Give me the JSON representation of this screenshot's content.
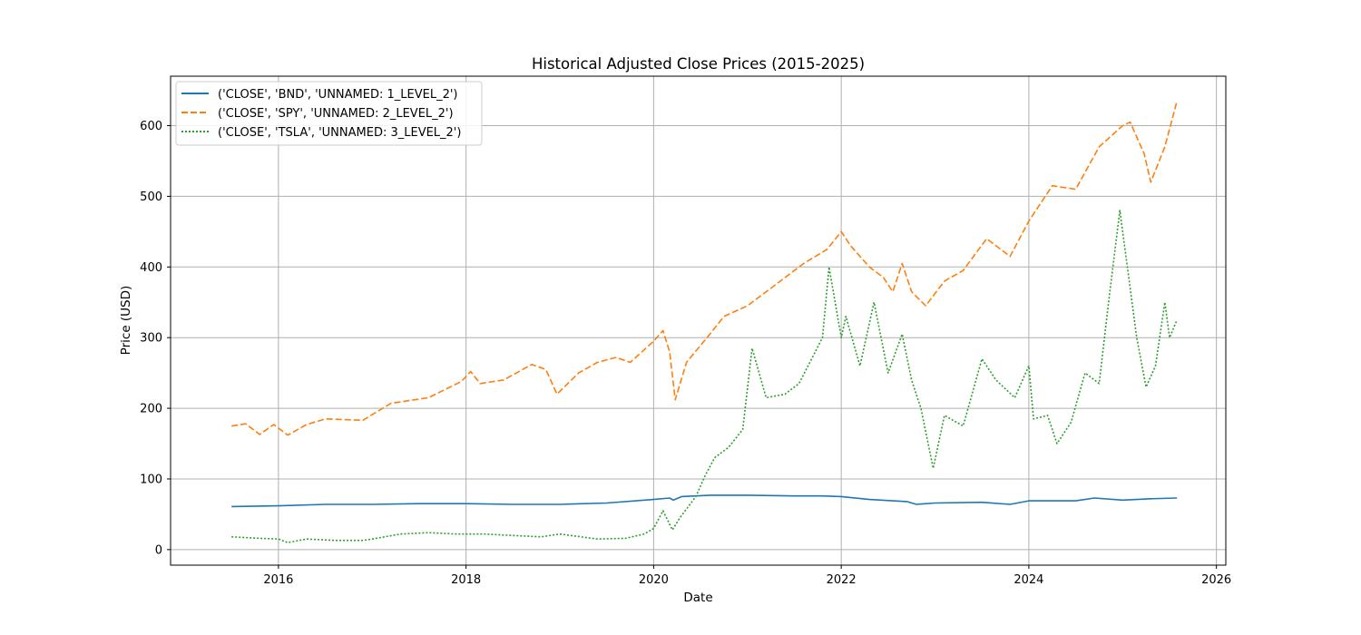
{
  "chart_data": {
    "type": "line",
    "title": "Historical Adjusted Close Prices (2015-2025)",
    "xlabel": "Date",
    "ylabel": "Price (USD)",
    "xlim": [
      2014.85,
      2026.1
    ],
    "ylim": [
      -22,
      670
    ],
    "x_ticks": [
      2016,
      2018,
      2020,
      2022,
      2024,
      2026
    ],
    "x_tick_labels": [
      "2016",
      "2018",
      "2020",
      "2022",
      "2024",
      "2026"
    ],
    "y_ticks": [
      0,
      100,
      200,
      300,
      400,
      500,
      600
    ],
    "y_tick_labels": [
      "0",
      "100",
      "200",
      "300",
      "400",
      "500",
      "600"
    ],
    "grid": true,
    "legend_position": "upper-left",
    "series": [
      {
        "name": "('CLOSE', 'BND', 'UNNAMED: 1_LEVEL_2')",
        "color": "#1f77b4",
        "dash": "solid",
        "x": [
          2015.5,
          2016.0,
          2016.5,
          2017.0,
          2017.5,
          2018.0,
          2018.5,
          2019.0,
          2019.5,
          2020.0,
          2020.17,
          2020.21,
          2020.3,
          2020.6,
          2021.0,
          2021.5,
          2021.8,
          2022.0,
          2022.3,
          2022.7,
          2022.8,
          2023.0,
          2023.5,
          2023.8,
          2024.0,
          2024.5,
          2024.7,
          2025.0,
          2025.3,
          2025.58
        ],
        "y": [
          61,
          62,
          64,
          64,
          65,
          65,
          64,
          64,
          66,
          71,
          73,
          70,
          75,
          77,
          77,
          76,
          76,
          75,
          71,
          68,
          64,
          66,
          67,
          64,
          69,
          69,
          73,
          70,
          72,
          73
        ]
      },
      {
        "name": "('CLOSE', 'SPY', 'UNNAMED: 2_LEVEL_2')",
        "color": "#ff7f0e",
        "dash": "dashed",
        "x": [
          2015.5,
          2015.65,
          2015.8,
          2015.95,
          2016.1,
          2016.3,
          2016.5,
          2016.9,
          2017.2,
          2017.6,
          2017.95,
          2018.05,
          2018.15,
          2018.4,
          2018.7,
          2018.85,
          2018.97,
          2019.2,
          2019.4,
          2019.6,
          2019.75,
          2020.0,
          2020.1,
          2020.17,
          2020.23,
          2020.35,
          2020.6,
          2020.75,
          2021.0,
          2021.3,
          2021.6,
          2021.85,
          2022.0,
          2022.1,
          2022.2,
          2022.3,
          2022.45,
          2022.55,
          2022.65,
          2022.75,
          2022.9,
          2023.1,
          2023.3,
          2023.55,
          2023.8,
          2024.0,
          2024.25,
          2024.5,
          2024.75,
          2025.0,
          2025.08,
          2025.23,
          2025.3,
          2025.45,
          2025.58
        ],
        "y": [
          175,
          178,
          163,
          177,
          162,
          177,
          185,
          183,
          207,
          215,
          238,
          252,
          235,
          240,
          262,
          255,
          220,
          250,
          265,
          272,
          265,
          295,
          310,
          280,
          212,
          265,
          305,
          330,
          345,
          375,
          405,
          425,
          450,
          430,
          415,
          400,
          385,
          365,
          405,
          365,
          345,
          380,
          395,
          440,
          415,
          465,
          515,
          510,
          570,
          600,
          605,
          560,
          520,
          570,
          635
        ]
      },
      {
        "name": "('CLOSE', 'TSLA', 'UNNAMED: 3_LEVEL_2')",
        "color": "#2ca02c",
        "dash": "dotted",
        "x": [
          2015.5,
          2015.8,
          2016.0,
          2016.1,
          2016.3,
          2016.6,
          2016.9,
          2017.0,
          2017.3,
          2017.6,
          2017.9,
          2018.2,
          2018.5,
          2018.8,
          2019.0,
          2019.4,
          2019.7,
          2019.9,
          2020.0,
          2020.1,
          2020.2,
          2020.28,
          2020.45,
          2020.55,
          2020.65,
          2020.8,
          2020.95,
          2021.05,
          2021.2,
          2021.4,
          2021.55,
          2021.8,
          2021.87,
          2022.0,
          2022.05,
          2022.2,
          2022.35,
          2022.5,
          2022.65,
          2022.75,
          2022.85,
          2022.98,
          2023.1,
          2023.3,
          2023.5,
          2023.65,
          2023.85,
          2024.0,
          2024.05,
          2024.2,
          2024.3,
          2024.45,
          2024.6,
          2024.75,
          2024.85,
          2024.97,
          2025.05,
          2025.15,
          2025.25,
          2025.35,
          2025.45,
          2025.5,
          2025.58
        ],
        "y": [
          18,
          16,
          15,
          10,
          15,
          13,
          13,
          15,
          22,
          24,
          22,
          22,
          20,
          18,
          22,
          15,
          16,
          22,
          30,
          55,
          28,
          45,
          75,
          105,
          130,
          145,
          170,
          285,
          215,
          220,
          235,
          300,
          400,
          300,
          330,
          260,
          350,
          250,
          305,
          240,
          200,
          115,
          190,
          175,
          270,
          240,
          215,
          260,
          185,
          190,
          150,
          180,
          250,
          235,
          350,
          480,
          400,
          300,
          230,
          260,
          350,
          300,
          325
        ]
      }
    ]
  }
}
